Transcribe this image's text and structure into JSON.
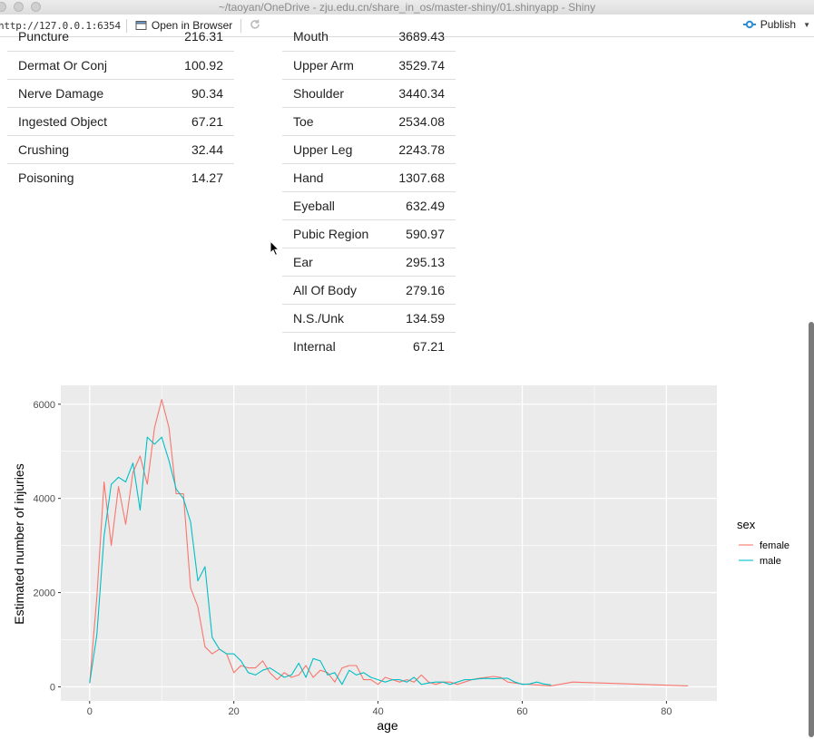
{
  "window": {
    "title": "~/taoyan/OneDrive - zju.edu.cn/share_in_os/master-shiny/01.shinyapp - Shiny"
  },
  "toolbar": {
    "url": "http://127.0.0.1:6354",
    "open_browser_label": "Open in Browser",
    "publish_label": "Publish"
  },
  "diag_table": {
    "rows": [
      {
        "label": "Puncture",
        "value": "216.31"
      },
      {
        "label": "Dermat Or Conj",
        "value": "100.92"
      },
      {
        "label": "Nerve Damage",
        "value": "90.34"
      },
      {
        "label": "Ingested Object",
        "value": "67.21"
      },
      {
        "label": "Crushing",
        "value": "32.44"
      },
      {
        "label": "Poisoning",
        "value": "14.27"
      }
    ]
  },
  "body_part_table": {
    "rows": [
      {
        "label": "Mouth",
        "value": "3689.43"
      },
      {
        "label": "Upper Arm",
        "value": "3529.74"
      },
      {
        "label": "Shoulder",
        "value": "3440.34"
      },
      {
        "label": "Toe",
        "value": "2534.08"
      },
      {
        "label": "Upper Leg",
        "value": "2243.78"
      },
      {
        "label": "Hand",
        "value": "1307.68"
      },
      {
        "label": "Eyeball",
        "value": "632.49"
      },
      {
        "label": "Pubic Region",
        "value": "590.97"
      },
      {
        "label": "Ear",
        "value": "295.13"
      },
      {
        "label": "All Of Body",
        "value": "279.16"
      },
      {
        "label": "N.S./Unk",
        "value": "134.59"
      },
      {
        "label": "Internal",
        "value": "67.21"
      }
    ]
  },
  "colors": {
    "female": "#F8766D",
    "male": "#00BFC4",
    "panel": "#EBEBEB"
  },
  "chart_data": {
    "type": "line",
    "title": "",
    "xlabel": "age",
    "ylabel": "Estimated number of injuries",
    "xlim": [
      -4,
      87
    ],
    "ylim": [
      -300,
      6400
    ],
    "xticks": [
      0,
      20,
      40,
      60,
      80
    ],
    "yticks": [
      0,
      2000,
      4000,
      6000
    ],
    "grid": true,
    "legend": {
      "title": "sex",
      "position": "right"
    },
    "series": [
      {
        "name": "female",
        "points": [
          [
            0,
            80
          ],
          [
            1,
            1900
          ],
          [
            2,
            4350
          ],
          [
            3,
            3000
          ],
          [
            4,
            4250
          ],
          [
            5,
            3450
          ],
          [
            6,
            4550
          ],
          [
            7,
            4900
          ],
          [
            8,
            4300
          ],
          [
            9,
            5500
          ],
          [
            10,
            6100
          ],
          [
            11,
            5500
          ],
          [
            12,
            4100
          ],
          [
            13,
            4100
          ],
          [
            14,
            2100
          ],
          [
            15,
            1700
          ],
          [
            16,
            850
          ],
          [
            17,
            700
          ],
          [
            18,
            800
          ],
          [
            19,
            700
          ],
          [
            20,
            300
          ],
          [
            21,
            450
          ],
          [
            22,
            400
          ],
          [
            23,
            400
          ],
          [
            24,
            550
          ],
          [
            25,
            300
          ],
          [
            26,
            150
          ],
          [
            27,
            300
          ],
          [
            28,
            200
          ],
          [
            29,
            250
          ],
          [
            30,
            450
          ],
          [
            31,
            200
          ],
          [
            32,
            350
          ],
          [
            33,
            300
          ],
          [
            34,
            100
          ],
          [
            35,
            400
          ],
          [
            36,
            450
          ],
          [
            37,
            450
          ],
          [
            38,
            150
          ],
          [
            39,
            150
          ],
          [
            40,
            50
          ],
          [
            41,
            200
          ],
          [
            42,
            150
          ],
          [
            43,
            100
          ],
          [
            44,
            150
          ],
          [
            45,
            100
          ],
          [
            46,
            250
          ],
          [
            47,
            100
          ],
          [
            48,
            50
          ],
          [
            49,
            100
          ],
          [
            50,
            100
          ],
          [
            51,
            50
          ],
          [
            52,
            100
          ],
          [
            53,
            150
          ],
          [
            54,
            180
          ],
          [
            55,
            200
          ],
          [
            56,
            220
          ],
          [
            57,
            200
          ],
          [
            58,
            100
          ],
          [
            59,
            80
          ],
          [
            60,
            60
          ],
          [
            61,
            50
          ],
          [
            62,
            40
          ],
          [
            63,
            30
          ],
          [
            64,
            20
          ],
          [
            67,
            100
          ],
          [
            83,
            20
          ]
        ]
      },
      {
        "name": "male",
        "points": [
          [
            0,
            80
          ],
          [
            1,
            1100
          ],
          [
            2,
            3200
          ],
          [
            3,
            4300
          ],
          [
            4,
            4450
          ],
          [
            5,
            4350
          ],
          [
            6,
            4750
          ],
          [
            7,
            3750
          ],
          [
            8,
            5300
          ],
          [
            9,
            5150
          ],
          [
            10,
            5300
          ],
          [
            11,
            4800
          ],
          [
            12,
            4200
          ],
          [
            13,
            4000
          ],
          [
            14,
            3500
          ],
          [
            15,
            2250
          ],
          [
            16,
            2550
          ],
          [
            17,
            1050
          ],
          [
            18,
            800
          ],
          [
            19,
            700
          ],
          [
            20,
            700
          ],
          [
            21,
            550
          ],
          [
            22,
            300
          ],
          [
            23,
            250
          ],
          [
            24,
            350
          ],
          [
            25,
            400
          ],
          [
            26,
            300
          ],
          [
            27,
            200
          ],
          [
            28,
            250
          ],
          [
            29,
            500
          ],
          [
            30,
            200
          ],
          [
            31,
            600
          ],
          [
            32,
            550
          ],
          [
            33,
            250
          ],
          [
            34,
            300
          ],
          [
            35,
            50
          ],
          [
            36,
            350
          ],
          [
            37,
            250
          ],
          [
            38,
            300
          ],
          [
            39,
            200
          ],
          [
            40,
            150
          ],
          [
            41,
            100
          ],
          [
            42,
            150
          ],
          [
            43,
            150
          ],
          [
            44,
            100
          ],
          [
            45,
            200
          ],
          [
            46,
            50
          ],
          [
            47,
            80
          ],
          [
            48,
            100
          ],
          [
            49,
            100
          ],
          [
            50,
            50
          ],
          [
            51,
            100
          ],
          [
            52,
            150
          ],
          [
            53,
            150
          ],
          [
            54,
            170
          ],
          [
            55,
            180
          ],
          [
            56,
            170
          ],
          [
            57,
            180
          ],
          [
            58,
            180
          ],
          [
            59,
            100
          ],
          [
            60,
            50
          ],
          [
            61,
            60
          ],
          [
            62,
            100
          ],
          [
            63,
            60
          ],
          [
            64,
            40
          ]
        ]
      }
    ]
  }
}
